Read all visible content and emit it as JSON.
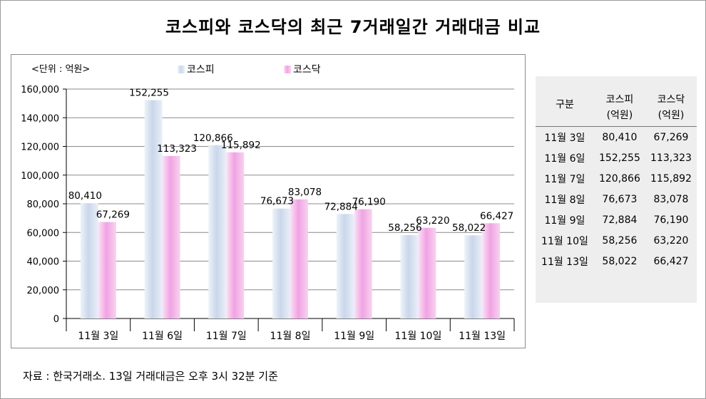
{
  "title": "코스피와 코스닥의 최근 7거래일간 거래대금 비교",
  "source": "자료 : 한국거래소. 13일 거래대금은 오후 3시 32분 기준",
  "chart_data": {
    "type": "bar",
    "unit_label": "<단위 : 억원>",
    "categories": [
      "11월 3일",
      "11월 6일",
      "11월 7일",
      "11월 8일",
      "11월 9일",
      "11월 10일",
      "11월 13일"
    ],
    "series": [
      {
        "name": "코스피",
        "values": [
          80410,
          152255,
          120866,
          76673,
          72884,
          58256,
          58022
        ],
        "value_labels": [
          "80,410",
          "152,255",
          "120,866",
          "76,673",
          "72,884",
          "58,256",
          "58,022"
        ],
        "color": "#c8d6ea"
      },
      {
        "name": "코스닥",
        "values": [
          67269,
          113323,
          115892,
          83078,
          76190,
          63220,
          66427
        ],
        "value_labels": [
          "67,269",
          "113,323",
          "115,892",
          "83,078",
          "76,190",
          "63,220",
          "66,427"
        ],
        "color": "#f2a6e4"
      }
    ],
    "yticks": [
      "0",
      "20,000",
      "40,000",
      "60,000",
      "80,000",
      "100,000",
      "120,000",
      "140,000",
      "160,000"
    ],
    "ylim": [
      0,
      160000
    ],
    "grid": true,
    "legend": "top"
  },
  "table": {
    "header": {
      "col1": "구분",
      "col2": "코스피",
      "col3": "코스닥",
      "unit2": "(억원)",
      "unit3": "(억원)"
    },
    "rows": [
      {
        "date": "11월  3일",
        "kospi": "80,410",
        "kosdaq": "67,269"
      },
      {
        "date": "11월  6일",
        "kospi": "152,255",
        "kosdaq": "113,323"
      },
      {
        "date": "11월  7일",
        "kospi": "120,866",
        "kosdaq": "115,892"
      },
      {
        "date": "11월  8일",
        "kospi": "76,673",
        "kosdaq": "83,078"
      },
      {
        "date": "11월  9일",
        "kospi": "72,884",
        "kosdaq": "76,190"
      },
      {
        "date": "11월  10일",
        "kospi": "58,256",
        "kosdaq": "63,220"
      },
      {
        "date": "11월  13일",
        "kospi": "58,022",
        "kosdaq": "66,427"
      }
    ]
  }
}
